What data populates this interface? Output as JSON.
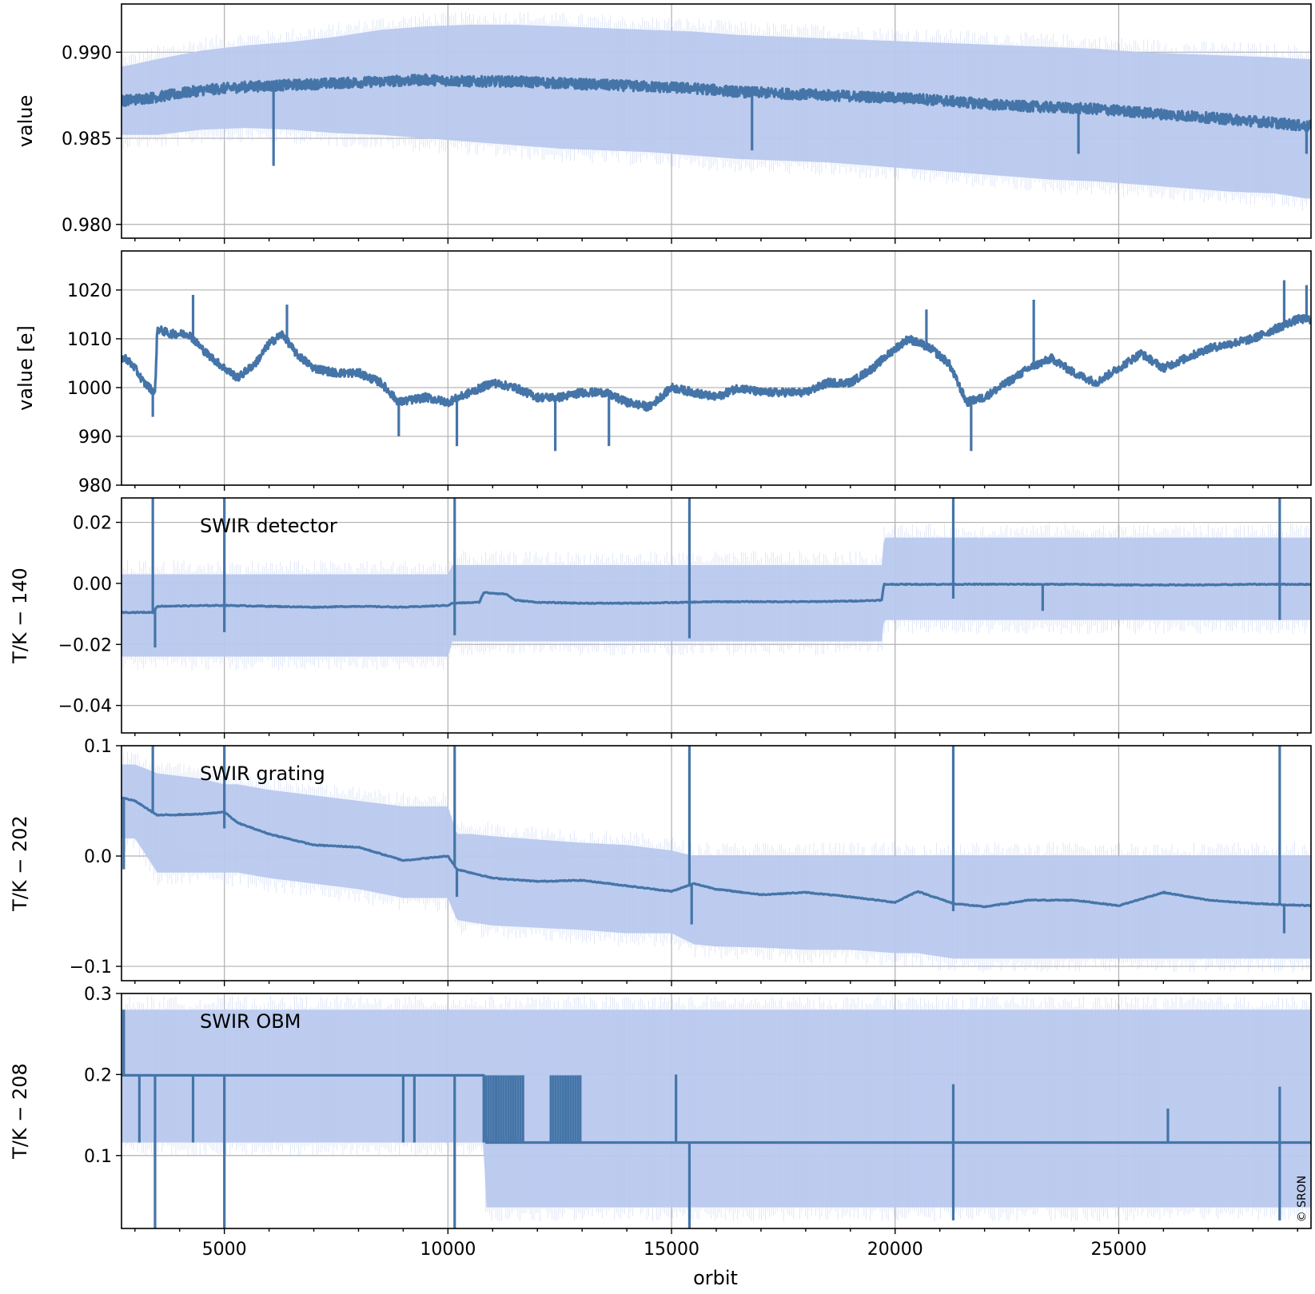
{
  "colors": {
    "line": "#4575a8",
    "band": "#b9c9ee",
    "grid": "#b0b0b0",
    "axes": "#000000"
  },
  "xaxis": {
    "label": "orbit",
    "range": [
      2700,
      29300
    ],
    "ticks": [
      5000,
      10000,
      15000,
      20000,
      25000
    ],
    "tick_labels": [
      "5000",
      "10000",
      "15000",
      "20000",
      "25000"
    ],
    "minor_step": 1000
  },
  "copyright": "© SRON",
  "chart_data": [
    {
      "type": "line",
      "title": "",
      "annotation": "",
      "ylabel": "value",
      "ylim": [
        0.9792,
        0.9928
      ],
      "yticks": [
        0.98,
        0.985,
        0.99
      ],
      "ytick_labels": [
        "0.980",
        "0.985",
        "0.990"
      ],
      "grid": true,
      "x": [
        2800,
        3500,
        4500,
        5500,
        6500,
        7500,
        8500,
        9500,
        10500,
        11500,
        12500,
        13500,
        14500,
        15500,
        16500,
        17500,
        18500,
        19500,
        20500,
        21500,
        22500,
        23500,
        24500,
        25500,
        26500,
        27500,
        28500,
        29200
      ],
      "series": [
        {
          "values": [
            0.9872,
            0.9874,
            0.9878,
            0.988,
            0.9881,
            0.9882,
            0.9883,
            0.9884,
            0.9883,
            0.9883,
            0.9882,
            0.9881,
            0.988,
            0.9879,
            0.9877,
            0.9876,
            0.9875,
            0.9874,
            0.9873,
            0.9871,
            0.9869,
            0.9868,
            0.9867,
            0.9865,
            0.9863,
            0.9861,
            0.9859,
            0.9857
          ],
          "band_low": [
            0.9852,
            0.9852,
            0.9855,
            0.9856,
            0.9855,
            0.9853,
            0.9852,
            0.985,
            0.9848,
            0.9846,
            0.9844,
            0.9843,
            0.9842,
            0.984,
            0.9838,
            0.9837,
            0.9836,
            0.9834,
            0.9832,
            0.983,
            0.9828,
            0.9826,
            0.9825,
            0.9823,
            0.9821,
            0.9819,
            0.9818,
            0.9815
          ],
          "band_high": [
            0.9892,
            0.9896,
            0.9901,
            0.9904,
            0.9906,
            0.9909,
            0.9913,
            0.9915,
            0.9916,
            0.9916,
            0.9915,
            0.9914,
            0.9913,
            0.9912,
            0.991,
            0.9909,
            0.9908,
            0.9907,
            0.9906,
            0.9905,
            0.9904,
            0.9903,
            0.9902,
            0.99,
            0.9899,
            0.9898,
            0.9897,
            0.9896
          ]
        }
      ],
      "spikes": [
        {
          "x": 6100,
          "value": 0.9834
        },
        {
          "x": 16800,
          "value": 0.9843
        },
        {
          "x": 24100,
          "value": 0.9841
        },
        {
          "x": 29200,
          "value": 0.9841
        }
      ]
    },
    {
      "type": "line",
      "title": "",
      "annotation": "",
      "ylabel": "value [e]",
      "ylim": [
        980,
        1028
      ],
      "yticks": [
        980,
        990,
        1000,
        1010,
        1020
      ],
      "ytick_labels": [
        "980",
        "990",
        "1000",
        "1010",
        "1020"
      ],
      "grid": true,
      "x": [
        2800,
        3000,
        3200,
        3450,
        3500,
        3800,
        4200,
        4600,
        5000,
        5300,
        5700,
        6000,
        6300,
        6600,
        7000,
        7500,
        8000,
        8500,
        8900,
        9500,
        10000,
        10500,
        11000,
        11500,
        12000,
        12500,
        13000,
        13500,
        14000,
        14500,
        15000,
        15500,
        16000,
        16500,
        17000,
        17500,
        18000,
        18500,
        19000,
        19500,
        20000,
        20300,
        20800,
        21200,
        21600,
        22000,
        22500,
        23000,
        23500,
        24000,
        24500,
        25000,
        25500,
        26000,
        26500,
        27000,
        27500,
        28000,
        28500,
        29000,
        29300
      ],
      "series": [
        {
          "values": [
            1006,
            1004,
            1001,
            999,
            1012,
            1011,
            1011,
            1007,
            1004,
            1002,
            1005,
            1009,
            1011,
            1007,
            1004,
            1003,
            1003,
            1001,
            997,
            998,
            997,
            999,
            1001,
            1000,
            998,
            998,
            999,
            999,
            997,
            996,
            1000,
            999,
            998,
            1000,
            999,
            999,
            999,
            1001,
            1001,
            1004,
            1008,
            1010,
            1008,
            1005,
            997,
            998,
            1001,
            1004,
            1006,
            1003,
            1001,
            1004,
            1007,
            1004,
            1006,
            1008,
            1009,
            1010,
            1012,
            1014,
            1014
          ]
        }
      ],
      "spikes": [
        {
          "x": 3400,
          "value": 994
        },
        {
          "x": 4300,
          "value": 1019
        },
        {
          "x": 6400,
          "value": 1017
        },
        {
          "x": 8900,
          "value": 990
        },
        {
          "x": 10200,
          "value": 988
        },
        {
          "x": 12400,
          "value": 987
        },
        {
          "x": 13600,
          "value": 988
        },
        {
          "x": 20700,
          "value": 1016
        },
        {
          "x": 21700,
          "value": 987
        },
        {
          "x": 23100,
          "value": 1018
        },
        {
          "x": 28700,
          "value": 1022
        },
        {
          "x": 29200,
          "value": 1021
        }
      ]
    },
    {
      "type": "line",
      "title": "",
      "annotation": "SWIR detector",
      "ylabel": "T/K − 140",
      "ylim": [
        -0.049,
        0.028
      ],
      "yticks": [
        -0.04,
        -0.02,
        0.0,
        0.02
      ],
      "ytick_labels": [
        "−0.04",
        "−0.02",
        "0.00",
        "0.02"
      ],
      "grid": true,
      "x": [
        2700,
        3400,
        3500,
        5000,
        6000,
        7000,
        8000,
        9000,
        10000,
        10100,
        10700,
        10800,
        11300,
        11500,
        12000,
        13000,
        14000,
        15000,
        16000,
        17000,
        18000,
        19000,
        19700,
        19750,
        21000,
        22000,
        23000,
        24000,
        25000,
        26000,
        27000,
        28000,
        29300
      ],
      "series": [
        {
          "values": [
            -0.0095,
            -0.0095,
            -0.0075,
            -0.0072,
            -0.0075,
            -0.0078,
            -0.0075,
            -0.0078,
            -0.0072,
            -0.0065,
            -0.0062,
            -0.003,
            -0.0035,
            -0.0055,
            -0.0062,
            -0.0065,
            -0.0065,
            -0.0063,
            -0.006,
            -0.006,
            -0.006,
            -0.0058,
            -0.0055,
            -0.0003,
            -0.0003,
            -0.0003,
            -0.0003,
            -0.0003,
            -0.0005,
            -0.0005,
            -0.0005,
            -0.0003,
            -0.0003
          ],
          "band_low": [
            -0.024,
            -0.024,
            -0.024,
            -0.024,
            -0.024,
            -0.024,
            -0.024,
            -0.024,
            -0.024,
            -0.019,
            -0.019,
            -0.019,
            -0.019,
            -0.019,
            -0.019,
            -0.019,
            -0.019,
            -0.019,
            -0.019,
            -0.019,
            -0.019,
            -0.019,
            -0.019,
            -0.012,
            -0.012,
            -0.012,
            -0.012,
            -0.012,
            -0.012,
            -0.012,
            -0.012,
            -0.012,
            -0.012
          ],
          "band_high": [
            0.003,
            0.003,
            0.003,
            0.003,
            0.003,
            0.003,
            0.003,
            0.003,
            0.003,
            0.006,
            0.006,
            0.006,
            0.006,
            0.006,
            0.006,
            0.006,
            0.006,
            0.006,
            0.006,
            0.006,
            0.006,
            0.006,
            0.006,
            0.015,
            0.015,
            0.015,
            0.015,
            0.015,
            0.015,
            0.015,
            0.015,
            0.015,
            0.015
          ]
        }
      ],
      "spikes": [
        {
          "x": 3400,
          "value": 0.028
        },
        {
          "x": 3450,
          "value": -0.021
        },
        {
          "x": 5000,
          "value": 0.028
        },
        {
          "x": 5000,
          "value": -0.016
        },
        {
          "x": 10150,
          "value": 0.028
        },
        {
          "x": 10150,
          "value": -0.017
        },
        {
          "x": 15400,
          "value": 0.028
        },
        {
          "x": 15400,
          "value": -0.018
        },
        {
          "x": 21300,
          "value": 0.028
        },
        {
          "x": 21300,
          "value": -0.005
        },
        {
          "x": 23300,
          "value": -0.009
        },
        {
          "x": 28600,
          "value": 0.028
        },
        {
          "x": 28600,
          "value": -0.012
        }
      ]
    },
    {
      "type": "line",
      "title": "",
      "annotation": "SWIR grating",
      "ylabel": "T/K − 202",
      "ylim": [
        -0.113,
        0.1
      ],
      "yticks": [
        -0.1,
        0.0,
        0.1
      ],
      "ytick_labels": [
        "−0.1",
        "0.0",
        "0.1"
      ],
      "grid": true,
      "x": [
        2700,
        3000,
        3500,
        4500,
        5000,
        5300,
        6000,
        7000,
        8000,
        9000,
        10000,
        10200,
        10500,
        11000,
        12000,
        13000,
        14000,
        15000,
        15500,
        16000,
        17000,
        18000,
        19000,
        20000,
        20500,
        21300,
        22000,
        23000,
        24000,
        25000,
        26000,
        27000,
        28000,
        29300
      ],
      "series": [
        {
          "values": [
            0.053,
            0.05,
            0.037,
            0.038,
            0.04,
            0.03,
            0.02,
            0.01,
            0.008,
            -0.004,
            0.0,
            -0.012,
            -0.015,
            -0.02,
            -0.023,
            -0.022,
            -0.027,
            -0.032,
            -0.025,
            -0.03,
            -0.035,
            -0.033,
            -0.037,
            -0.042,
            -0.032,
            -0.043,
            -0.046,
            -0.04,
            -0.04,
            -0.045,
            -0.033,
            -0.04,
            -0.043,
            -0.045
          ],
          "band_low": [
            0.016,
            0.016,
            -0.015,
            -0.015,
            -0.015,
            -0.015,
            -0.02,
            -0.025,
            -0.03,
            -0.038,
            -0.038,
            -0.058,
            -0.06,
            -0.063,
            -0.065,
            -0.067,
            -0.07,
            -0.07,
            -0.08,
            -0.082,
            -0.083,
            -0.085,
            -0.085,
            -0.088,
            -0.088,
            -0.093,
            -0.093,
            -0.093,
            -0.093,
            -0.093,
            -0.093,
            -0.093,
            -0.093,
            -0.093
          ],
          "band_high": [
            0.083,
            0.083,
            0.075,
            0.07,
            0.065,
            0.065,
            0.06,
            0.055,
            0.05,
            0.045,
            0.045,
            0.02,
            0.02,
            0.018,
            0.015,
            0.012,
            0.01,
            0.005,
            0.0,
            0.0,
            0.0,
            0.0,
            0.0,
            0.0,
            0.0,
            0.0,
            0.0,
            0.0,
            0.0,
            0.0,
            0.0,
            0.0,
            0.0,
            0.0
          ]
        }
      ],
      "spikes": [
        {
          "x": 2750,
          "value": -0.012
        },
        {
          "x": 3400,
          "value": 0.1
        },
        {
          "x": 5000,
          "value": 0.1
        },
        {
          "x": 5000,
          "value": 0.025
        },
        {
          "x": 10150,
          "value": 0.1
        },
        {
          "x": 10200,
          "value": -0.037
        },
        {
          "x": 15400,
          "value": 0.1
        },
        {
          "x": 15450,
          "value": -0.062
        },
        {
          "x": 21300,
          "value": 0.1
        },
        {
          "x": 21300,
          "value": -0.05
        },
        {
          "x": 28600,
          "value": 0.1
        },
        {
          "x": 28700,
          "value": -0.07
        }
      ]
    },
    {
      "type": "line",
      "title": "",
      "annotation": "SWIR OBM",
      "ylabel": "T/K − 208",
      "ylim": [
        0.01,
        0.3
      ],
      "yticks": [
        0.1,
        0.2,
        0.3
      ],
      "ytick_labels": [
        "0.1",
        "0.2",
        "0.3"
      ],
      "grid": true,
      "x": [
        2700,
        10800,
        10850,
        13000,
        13050,
        29300
      ],
      "series": [
        {
          "values": [
            0.199,
            0.199,
            0.116,
            0.116,
            0.116,
            0.116
          ],
          "band_low": [
            0.116,
            0.116,
            0.036,
            0.036,
            0.036,
            0.036
          ],
          "band_high": [
            0.28,
            0.28,
            0.28,
            0.28,
            0.28,
            0.28
          ]
        }
      ],
      "spikes": [
        {
          "x": 2750,
          "value": 0.28
        },
        {
          "x": 3100,
          "value": 0.116
        },
        {
          "x": 3450,
          "value": 0.01
        },
        {
          "x": 4300,
          "value": 0.116
        },
        {
          "x": 5000,
          "value": 0.01
        },
        {
          "x": 9000,
          "value": 0.116
        },
        {
          "x": 9250,
          "value": 0.116
        },
        {
          "x": 10150,
          "value": 0.01
        },
        {
          "x": 15100,
          "value": 0.2
        },
        {
          "x": 15400,
          "value": 0.01
        },
        {
          "x": 21300,
          "value": 0.188
        },
        {
          "x": 21300,
          "value": 0.02
        },
        {
          "x": 26100,
          "value": 0.158
        },
        {
          "x": 28600,
          "value": 0.185
        },
        {
          "x": 28600,
          "value": 0.02
        }
      ],
      "toggle_ranges": [
        [
          10800,
          11700
        ],
        [
          12300,
          13000
        ]
      ],
      "toggle_low": 0.116,
      "toggle_high": 0.199
    }
  ]
}
